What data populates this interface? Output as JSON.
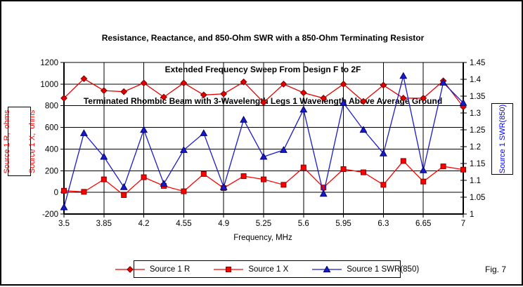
{
  "figure_label": "Fig. 7",
  "chart_data": {
    "type": "line",
    "title_lines": [
      "Resistance, Reactance, and 850-Ohm SWR with a 850-Ohm Terminating Resistor",
      "Extended Frequency Sweep From Design F to 2F",
      "Terminated Rhombic Beam with 3-Wavelength Legs 1 Wavelength Above Average Ground"
    ],
    "xlabel": "Frequency, MHz",
    "grid": true,
    "legend_position": "bottom-center",
    "x_axis": {
      "min": 3.5,
      "max": 7,
      "tick_step": 0.35,
      "ticks": [
        "3.5",
        "3.85",
        "4.2",
        "4.55",
        "4.9",
        "5.25",
        "5.6",
        "5.95",
        "6.3",
        "6.65",
        "7"
      ]
    },
    "left_axis": {
      "label_lines": [
        "Source 1 R,  ohms",
        "Source 1 X,  ohms"
      ],
      "color": "#ff0000",
      "min": -200,
      "max": 1200,
      "tick_step": 200,
      "ticks": [
        "1200",
        "1000",
        "800",
        "600",
        "400",
        "200",
        "0",
        "-200"
      ]
    },
    "right_axis": {
      "label": "Source 1 SWR(850)",
      "color": "#0000ff",
      "min": 1,
      "max": 1.45,
      "tick_step": 0.05,
      "ticks": [
        "1.45",
        "1.4",
        "1.35",
        "1.3",
        "1.25",
        "1.2",
        "1.15",
        "1.1",
        "1.05",
        "1"
      ]
    },
    "x": [
      3.5,
      3.675,
      3.85,
      4.025,
      4.2,
      4.375,
      4.55,
      4.725,
      4.9,
      5.075,
      5.25,
      5.425,
      5.6,
      5.775,
      5.95,
      6.125,
      6.3,
      6.475,
      6.65,
      6.825,
      7
    ],
    "series": [
      {
        "name": "Source 1 R",
        "axis": "left",
        "marker": "diamond",
        "color": "#e60000",
        "edge": "#7a0000",
        "values": [
          870,
          1050,
          940,
          930,
          1010,
          880,
          1010,
          900,
          910,
          1020,
          830,
          1000,
          920,
          870,
          1000,
          840,
          990,
          870,
          870,
          1030,
          790
        ]
      },
      {
        "name": "Source 1 X",
        "axis": "left",
        "marker": "square",
        "color": "#ff0000",
        "edge": "#8a0000",
        "values": [
          15,
          5,
          120,
          -25,
          140,
          60,
          10,
          170,
          40,
          150,
          120,
          70,
          230,
          45,
          215,
          185,
          70,
          290,
          100,
          240,
          210
        ]
      },
      {
        "name": "Source 1 SWR(850)",
        "axis": "right",
        "marker": "triangle",
        "color": "#1a1acd",
        "edge": "#000070",
        "values": [
          1.02,
          1.24,
          1.17,
          1.08,
          1.25,
          1.09,
          1.19,
          1.24,
          1.08,
          1.28,
          1.17,
          1.19,
          1.31,
          1.06,
          1.33,
          1.25,
          1.18,
          1.41,
          1.13,
          1.39,
          1.33
        ]
      }
    ]
  }
}
